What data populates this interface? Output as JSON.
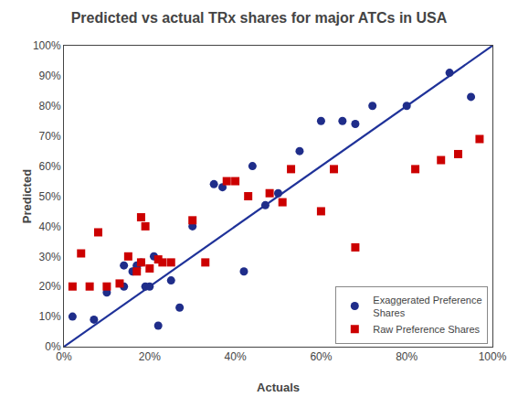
{
  "chart_data": {
    "type": "scatter",
    "title": "Predicted vs actual TRx shares for major ATCs in USA",
    "xlabel": "Actuals",
    "ylabel": "Predicted",
    "xlim": [
      0,
      1.0
    ],
    "ylim": [
      0,
      1.0
    ],
    "xticks": [
      {
        "value": 0,
        "label": "0%"
      },
      {
        "value": 0.2,
        "label": "20%"
      },
      {
        "value": 0.4,
        "label": "40%"
      },
      {
        "value": 0.6,
        "label": "60%"
      },
      {
        "value": 0.8,
        "label": "80%"
      },
      {
        "value": 1.0,
        "label": "100%"
      }
    ],
    "yticks": [
      {
        "value": 0,
        "label": "0%"
      },
      {
        "value": 0.1,
        "label": "10%"
      },
      {
        "value": 0.2,
        "label": "20%"
      },
      {
        "value": 0.3,
        "label": "30%"
      },
      {
        "value": 0.4,
        "label": "40%"
      },
      {
        "value": 0.5,
        "label": "50%"
      },
      {
        "value": 0.6,
        "label": "60%"
      },
      {
        "value": 0.7,
        "label": "70%"
      },
      {
        "value": 0.8,
        "label": "80%"
      },
      {
        "value": 0.9,
        "label": "90%"
      },
      {
        "value": 1.0,
        "label": "100%"
      }
    ],
    "grid": false,
    "legend": "lower right",
    "series": [
      {
        "type": "line",
        "color": "#1f3299",
        "x": [
          0,
          1.0
        ],
        "values": [
          0,
          1.0
        ]
      },
      {
        "type": "scatter",
        "name": "Exaggerated Preference\nShares",
        "marker": "circle",
        "color": "#1f2d8a",
        "x": [
          0.02,
          0.07,
          0.1,
          0.14,
          0.14,
          0.16,
          0.17,
          0.17,
          0.18,
          0.19,
          0.2,
          0.21,
          0.22,
          0.25,
          0.27,
          0.3,
          0.35,
          0.37,
          0.42,
          0.44,
          0.47,
          0.5,
          0.55,
          0.6,
          0.65,
          0.68,
          0.72,
          0.8,
          0.9,
          0.95
        ],
        "values": [
          0.1,
          0.09,
          0.18,
          0.2,
          0.27,
          0.25,
          0.26,
          0.27,
          0.28,
          0.2,
          0.2,
          0.3,
          0.07,
          0.22,
          0.13,
          0.4,
          0.54,
          0.53,
          0.25,
          0.6,
          0.47,
          0.51,
          0.65,
          0.75,
          0.75,
          0.74,
          0.8,
          0.8,
          0.91,
          0.83
        ]
      },
      {
        "type": "scatter",
        "name": "Raw Preference Shares",
        "marker": "square",
        "color": "#cc0000",
        "x": [
          0.02,
          0.04,
          0.06,
          0.08,
          0.1,
          0.13,
          0.15,
          0.17,
          0.18,
          0.18,
          0.19,
          0.2,
          0.22,
          0.23,
          0.25,
          0.3,
          0.33,
          0.38,
          0.4,
          0.43,
          0.48,
          0.51,
          0.53,
          0.6,
          0.63,
          0.68,
          0.82,
          0.88,
          0.92,
          0.97
        ],
        "values": [
          0.2,
          0.31,
          0.2,
          0.38,
          0.2,
          0.21,
          0.3,
          0.25,
          0.28,
          0.43,
          0.4,
          0.26,
          0.29,
          0.28,
          0.28,
          0.42,
          0.28,
          0.55,
          0.55,
          0.5,
          0.51,
          0.48,
          0.59,
          0.45,
          0.59,
          0.33,
          0.59,
          0.62,
          0.64,
          0.69
        ]
      }
    ]
  }
}
